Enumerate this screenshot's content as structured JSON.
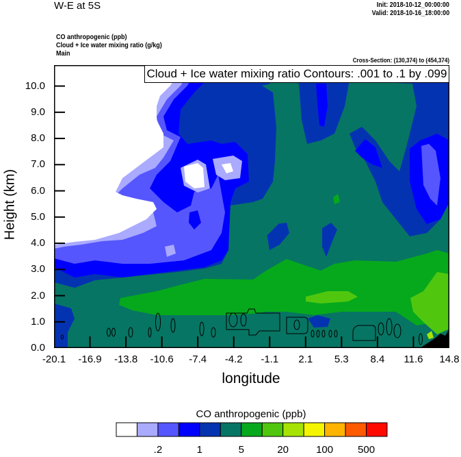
{
  "header": {
    "title": "W-E at 5S",
    "init": "Init: 2018-10-12_00:00:00",
    "valid": "Valid: 2018-10-16_18:00:00",
    "fields": [
      "CO anthropogenic   (ppb)",
      "Cloud + Ice water mixing ratio   (g/kg)",
      "Main"
    ],
    "cross_section": "Cross-Section: (130,374) to (454,374)"
  },
  "chart_data": {
    "type": "heatmap",
    "title": "W-E at 5S",
    "contour_legend": "Cloud + Ice water mixing ratio Contours: .001 to .1 by .099",
    "xlabel": "longitude",
    "ylabel": "Height (km)",
    "xlim": [
      -20.1,
      14.8
    ],
    "ylim": [
      0,
      10.8
    ],
    "xticks": [
      "-20.1",
      "-16.9",
      "-13.8",
      "-10.6",
      "-7.4",
      "-4.2",
      "-1.1",
      "2.1",
      "5.3",
      "8.4",
      "11.6",
      "14.8"
    ],
    "yticks": [
      "0.0",
      "1.0",
      "2.0",
      "3.0",
      "4.0",
      "5.0",
      "6.0",
      "7.0",
      "8.0",
      "9.0",
      "10.0"
    ],
    "colorbar": {
      "title": "CO anthropogenic  (ppb)",
      "colors": [
        "#ffffff",
        "#aaaafe",
        "#5656fe",
        "#0000fe",
        "#0433b2",
        "#077563",
        "#06a91c",
        "#50c70e",
        "#a6e304",
        "#f5f500",
        "#feb400",
        "#fe5a00",
        "#fe0a00"
      ],
      "labels": [
        ".2",
        "1",
        "5",
        "20",
        "100",
        "500"
      ]
    },
    "terrain_color": "#000000"
  }
}
